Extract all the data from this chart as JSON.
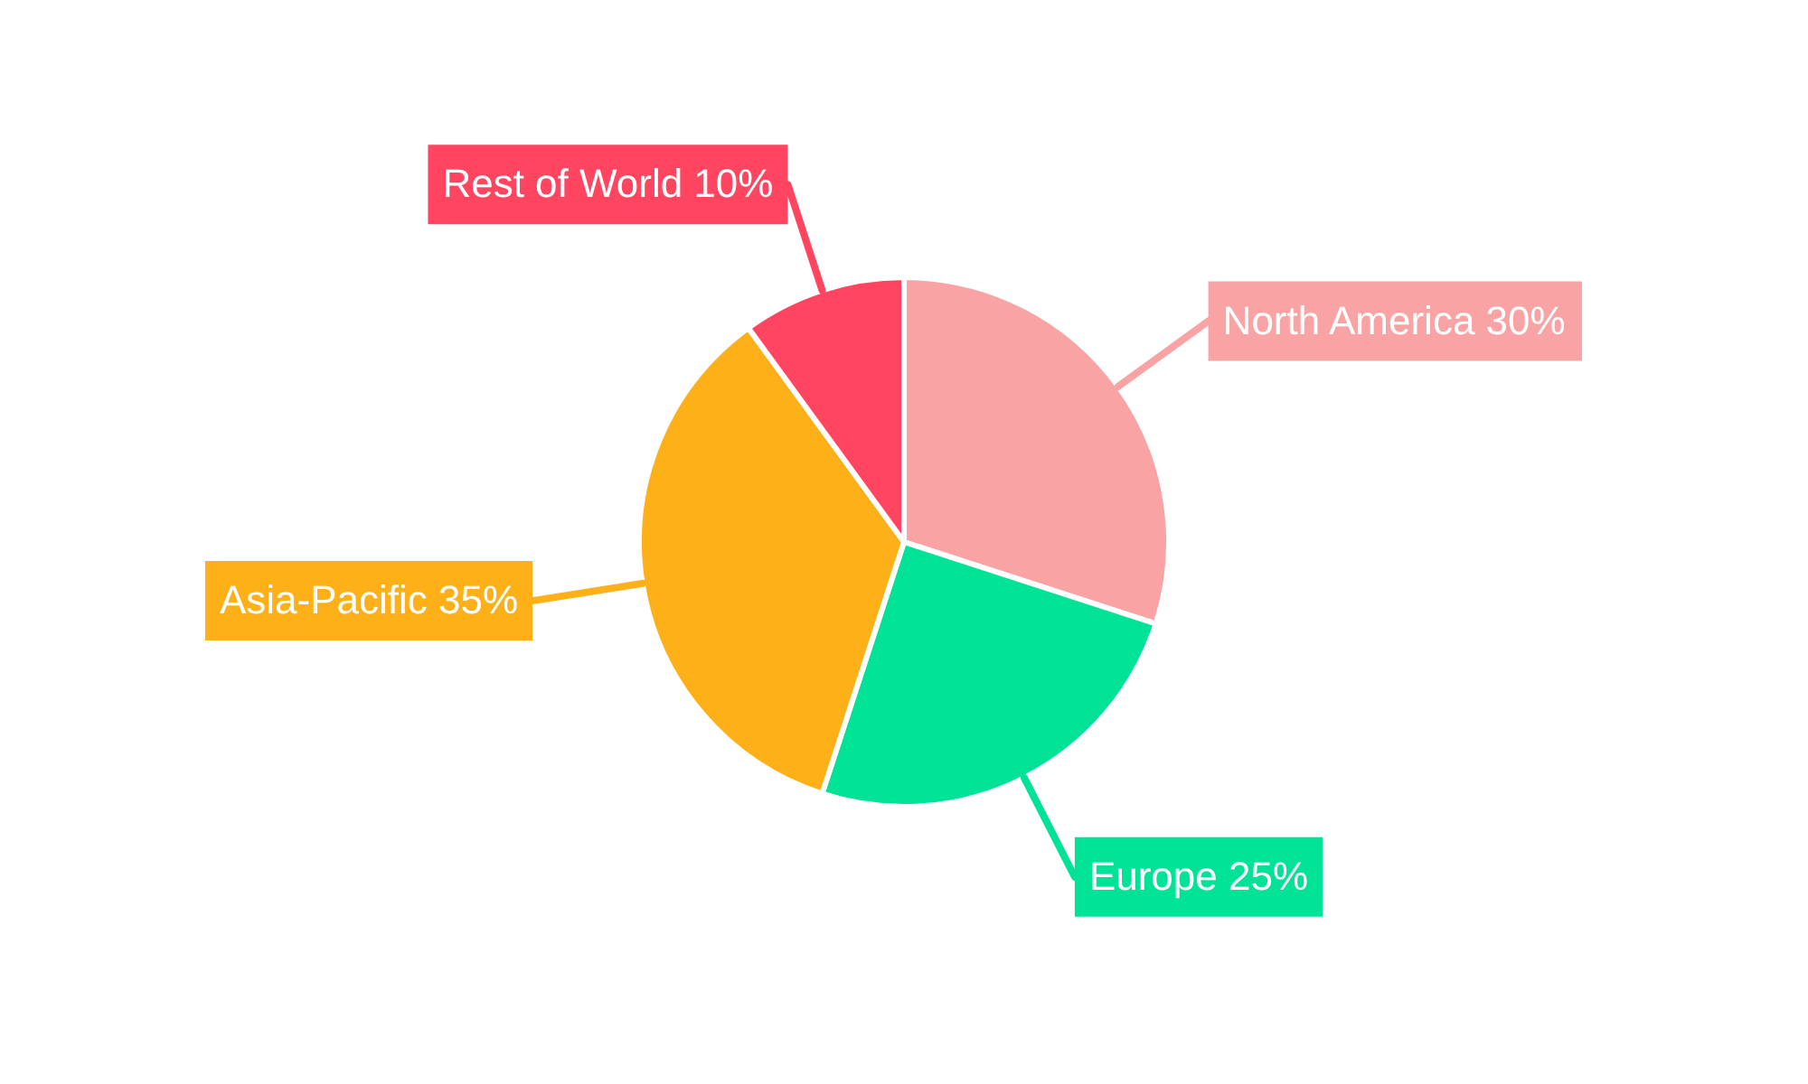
{
  "chart_data": {
    "type": "pie",
    "categories": [
      "North America",
      "Europe",
      "Asia-Pacific",
      "Rest of World"
    ],
    "values": [
      30,
      25,
      35,
      10
    ],
    "value_labels": [
      "30%",
      "25%",
      "35%",
      "10%"
    ],
    "colors": [
      "#f9a3a4",
      "#00e396",
      "#feb019",
      "#ff4560"
    ],
    "legend": false
  }
}
